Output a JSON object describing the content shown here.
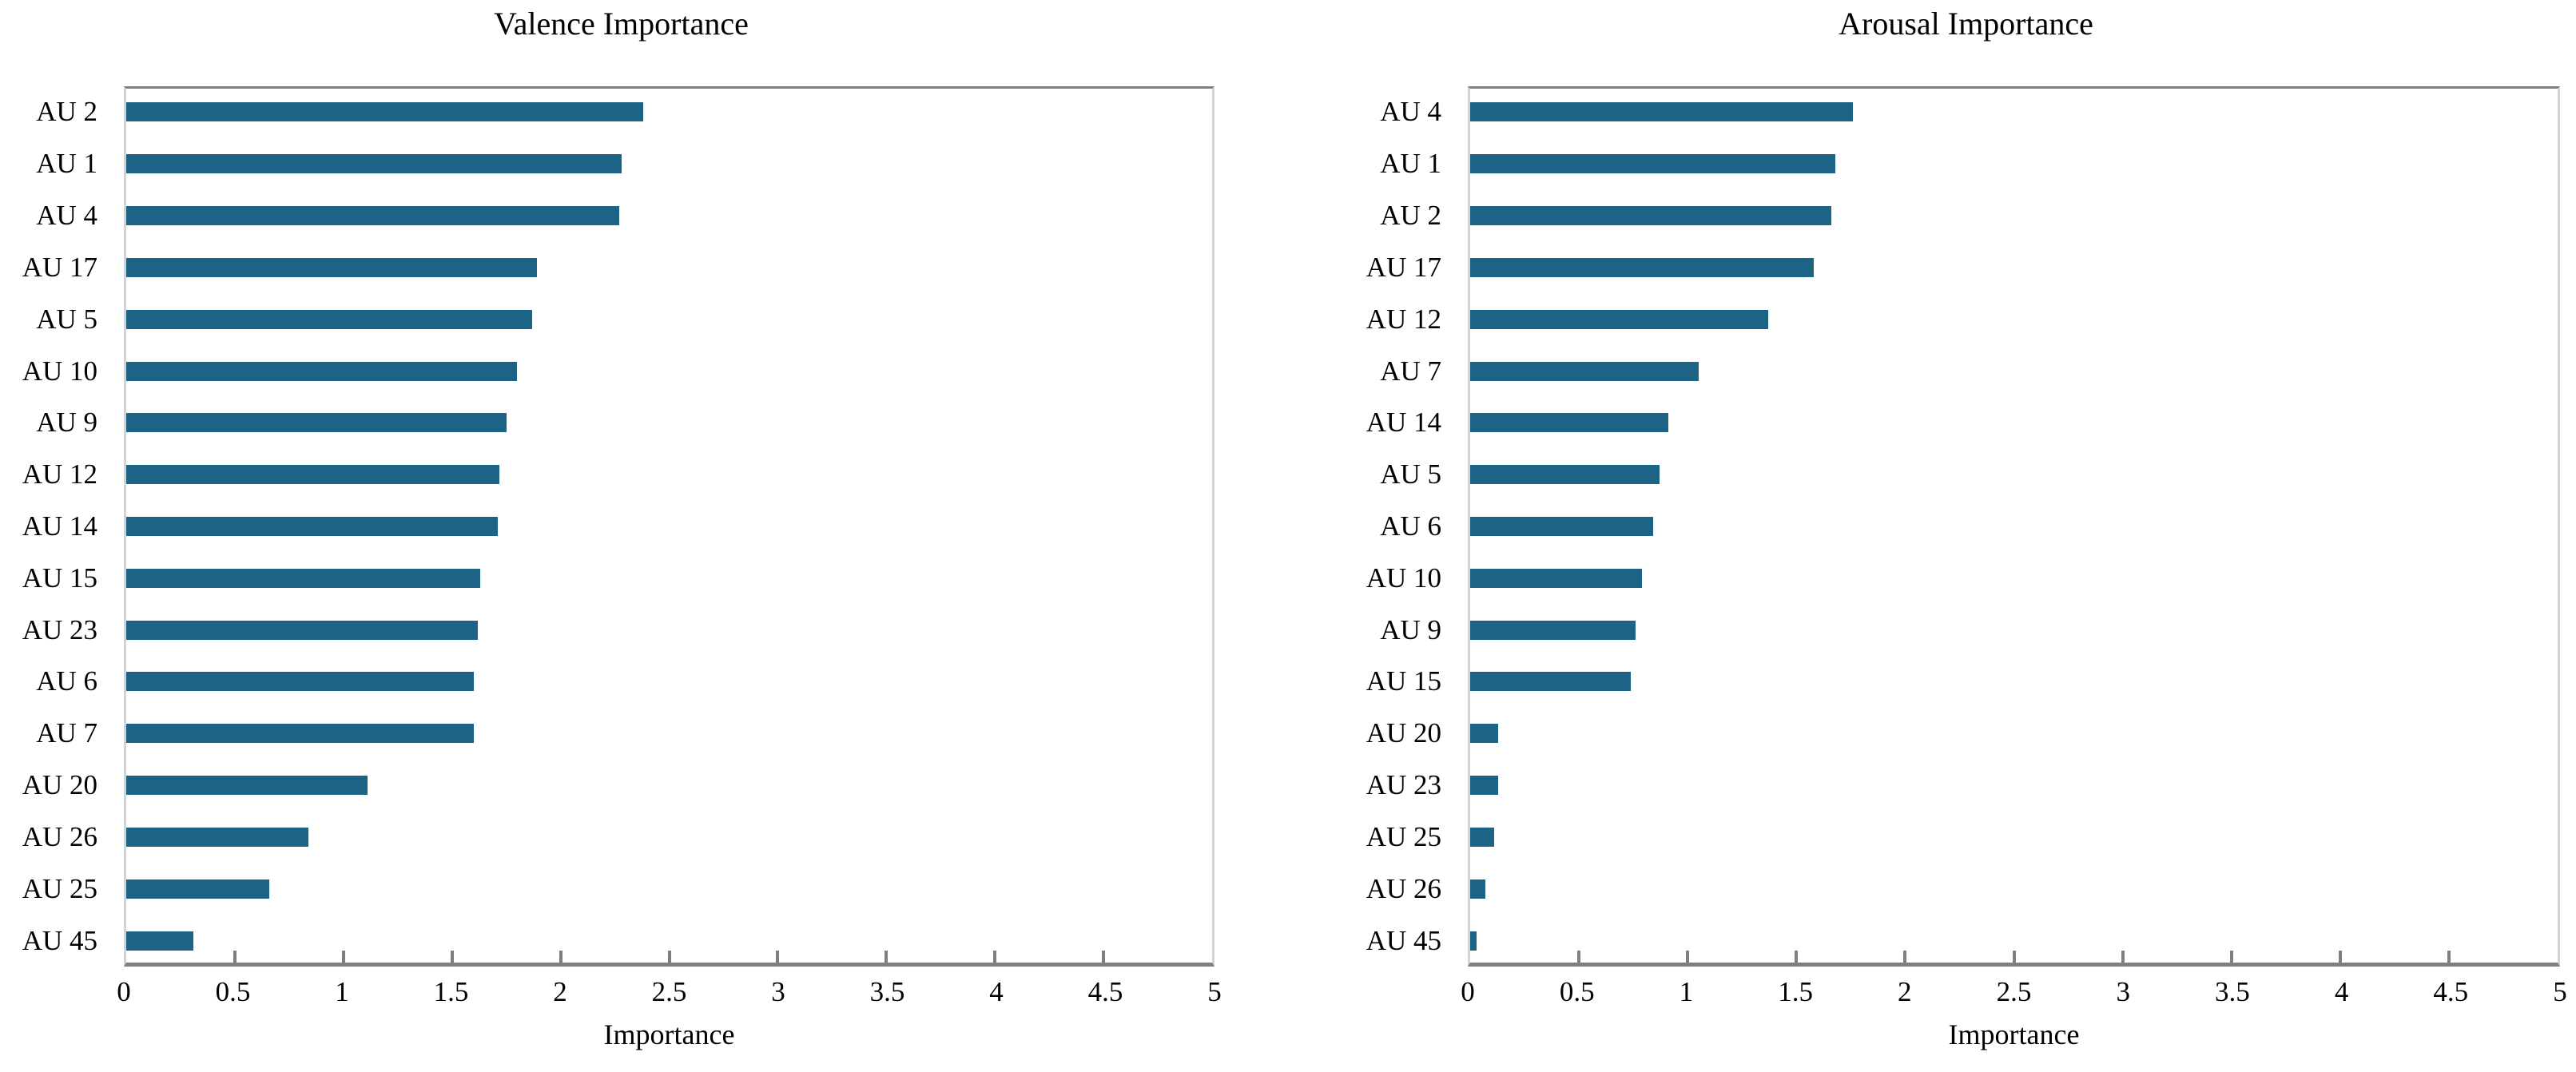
{
  "page": {
    "background": "#ffffff"
  },
  "styles": {
    "bar_color": "#1d6386",
    "axis_dark_color": "#7f7f7f",
    "axis_light_color": "#d3d3d3",
    "text_color": "#000000"
  },
  "chart_data": [
    {
      "type": "bar",
      "orientation": "horizontal",
      "title": "Valence Importance",
      "xlabel": "Importance",
      "ylabel": "",
      "xlim": [
        0,
        5
      ],
      "grid": false,
      "legend": "none",
      "xtick_labels": [
        "0",
        "0.5",
        "1",
        "1.5",
        "2",
        "2.5",
        "3",
        "3.5",
        "4",
        "4.5",
        "5"
      ],
      "xtick_values": [
        0,
        0.5,
        1,
        1.5,
        2,
        2.5,
        3,
        3.5,
        4,
        4.5,
        5
      ],
      "categories": [
        "AU 2",
        "AU 1",
        "AU 4",
        "AU 17",
        "AU 5",
        "AU 10",
        "AU 9",
        "AU 12",
        "AU 14",
        "AU 15",
        "AU 23",
        "AU 6",
        "AU 7",
        "AU 20",
        "AU 26",
        "AU 25",
        "AU 45"
      ],
      "values": [
        2.38,
        2.28,
        2.27,
        1.89,
        1.87,
        1.8,
        1.75,
        1.72,
        1.71,
        1.63,
        1.62,
        1.6,
        1.6,
        1.11,
        0.84,
        0.66,
        0.31
      ]
    },
    {
      "type": "bar",
      "orientation": "horizontal",
      "title": "Arousal Importance",
      "xlabel": "Importance",
      "ylabel": "",
      "xlim": [
        0,
        5
      ],
      "grid": false,
      "legend": "none",
      "xtick_labels": [
        "0",
        "0.5",
        "1",
        "1.5",
        "2",
        "2.5",
        "3",
        "3.5",
        "4",
        "4.5",
        "5"
      ],
      "xtick_values": [
        0,
        0.5,
        1,
        1.5,
        2,
        2.5,
        3,
        3.5,
        4,
        4.5,
        5
      ],
      "categories": [
        "AU 4",
        "AU 1",
        "AU 2",
        "AU 17",
        "AU 12",
        "AU 7",
        "AU 14",
        "AU 5",
        "AU 6",
        "AU 10",
        "AU 9",
        "AU 15",
        "AU 20",
        "AU 23",
        "AU 25",
        "AU 26",
        "AU 45"
      ],
      "values": [
        1.76,
        1.68,
        1.66,
        1.58,
        1.37,
        1.05,
        0.91,
        0.87,
        0.84,
        0.79,
        0.76,
        0.74,
        0.13,
        0.13,
        0.11,
        0.07,
        0.03
      ]
    }
  ]
}
